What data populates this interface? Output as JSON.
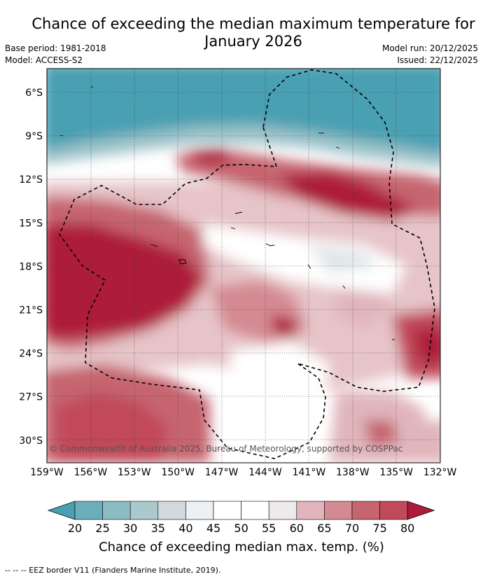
{
  "title_line1": "Chance of exceeding the median maximum temperature for",
  "title_line2": "January 2026",
  "base_period": "Base period: 1981-2018",
  "model": "Model: ACCESS-S2",
  "model_run": "Model run: 20/12/2025",
  "issued": "Issued: 22/12/2025",
  "copyright": "© Commonwealth of Australia 2025, Bureau of Meteorology, supported by COSPPac",
  "lat_labels": [
    "6°S",
    "9°S",
    "12°S",
    "15°S",
    "18°S",
    "21°S",
    "24°S",
    "27°S",
    "30°S"
  ],
  "lon_labels": [
    "159°W",
    "156°W",
    "153°W",
    "150°W",
    "147°W",
    "144°W",
    "141°W",
    "138°W",
    "135°W",
    "132°W"
  ],
  "colorbar": {
    "ticks": [
      "20",
      "25",
      "30",
      "35",
      "40",
      "45",
      "50",
      "55",
      "60",
      "65",
      "70",
      "75",
      "80"
    ],
    "colors": [
      "#4aa0b2",
      "#6aaebb",
      "#8bbcc4",
      "#abc8cc",
      "#d2dadd",
      "#edf1f3",
      "#ffffff",
      "#ffffff",
      "#eeeaeb",
      "#e0b5bb",
      "#d48a93",
      "#c66570",
      "#c14a5a",
      "#ad1a3a"
    ],
    "label": "Chance of exceeding median max. temp. (%)"
  },
  "footer": "--  --  -- EEZ border V11 (Flanders Marine Institute, 2019)."
}
